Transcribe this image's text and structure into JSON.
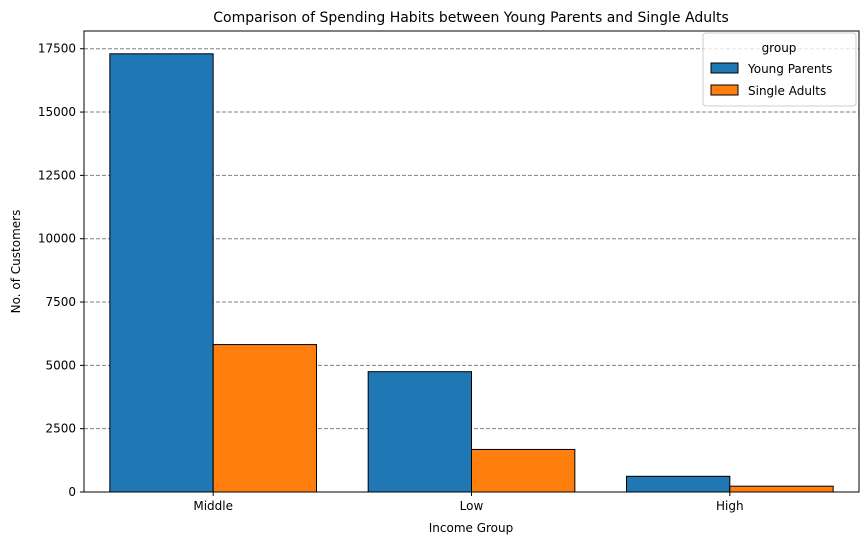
{
  "chart_data": {
    "type": "bar",
    "title": "Comparison of Spending Habits between Young Parents and Single Adults",
    "xlabel": "Income Group",
    "ylabel": "No. of Customers",
    "categories": [
      "Middle",
      "Low",
      "High"
    ],
    "series": [
      {
        "name": "Young Parents",
        "values": [
          17300,
          4750,
          620
        ],
        "color": "#1f77b4"
      },
      {
        "name": "Single Adults",
        "values": [
          5820,
          1680,
          230
        ],
        "color": "#ff7f0e"
      }
    ],
    "ylim": [
      0,
      18200
    ],
    "yticks": [
      0,
      2500,
      5000,
      7500,
      10000,
      12500,
      15000,
      17500
    ],
    "grid": "y-dashed",
    "legend": {
      "title": "group",
      "position": "top-right"
    }
  }
}
